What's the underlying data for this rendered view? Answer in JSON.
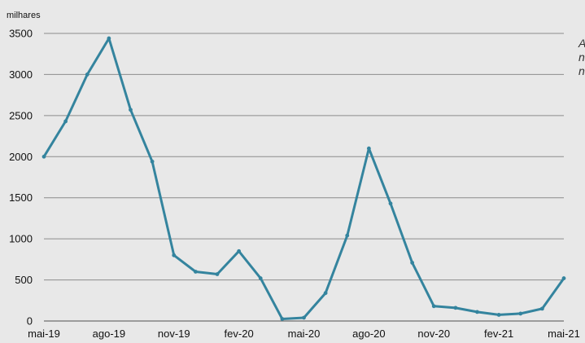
{
  "chart_data": {
    "type": "line",
    "title": "",
    "unit_label": "milhares",
    "xlabel": "",
    "ylabel": "",
    "ylim": [
      0,
      3500
    ],
    "yticks": [
      0,
      500,
      1000,
      1500,
      2000,
      2500,
      3000,
      3500
    ],
    "grid": true,
    "categories": [
      "mai-19",
      "jun-19",
      "jul-19",
      "ago-19",
      "set-19",
      "out-19",
      "nov-19",
      "dez-19",
      "jan-20",
      "fev-20",
      "mar-20",
      "abr-20",
      "mai-20",
      "jun-20",
      "jul-20",
      "ago-20",
      "set-20",
      "out-20",
      "nov-20",
      "dez-20",
      "jan-21",
      "fev-21",
      "mar-21",
      "abr-21",
      "mai-21"
    ],
    "xtick_labels": [
      "mai-19",
      "ago-19",
      "nov-19",
      "fev-20",
      "mai-20",
      "ago-20",
      "nov-20",
      "fev-21",
      "mai-21"
    ],
    "series": [
      {
        "color": "#34849e",
        "values": [
          2000,
          2430,
          3000,
          3440,
          2570,
          1940,
          800,
          600,
          570,
          850,
          520,
          25,
          40,
          340,
          1040,
          2100,
          1430,
          710,
          180,
          160,
          110,
          75,
          90,
          150,
          520
        ]
      }
    ],
    "side_note_lines": [
      "A",
      "n",
      "n"
    ]
  }
}
